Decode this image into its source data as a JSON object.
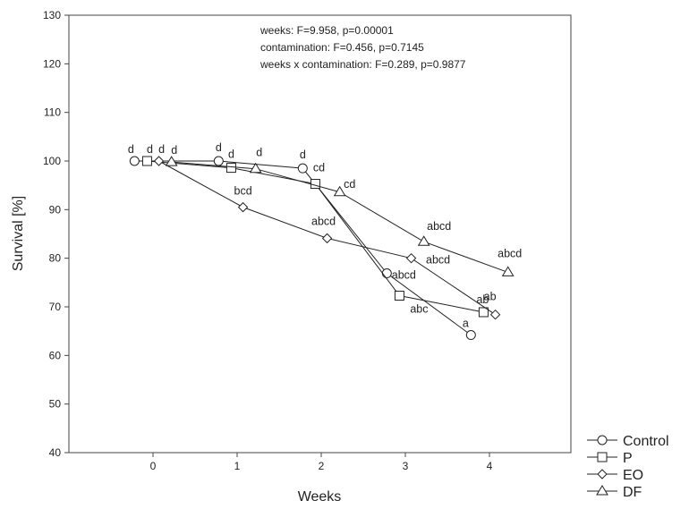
{
  "chart_data": {
    "type": "line",
    "xlabel": "Weeks",
    "ylabel": "Survival [%]",
    "xlim": [
      -1,
      5
    ],
    "ylim": [
      40,
      130
    ],
    "x_ticks": [
      0,
      1,
      2,
      3,
      4
    ],
    "y_ticks": [
      40,
      50,
      60,
      70,
      80,
      90,
      100,
      110,
      120,
      130
    ],
    "grid": false,
    "legend_position": "bottom-right, outside plot",
    "stats_text": [
      "weeks: F=9.958, p=0.00001",
      "contamination: F=0.456, p=0.7145",
      "weeks x contamination: F=0.289, p=0.9877"
    ],
    "series": [
      {
        "name": "Control",
        "marker": "circle",
        "points": [
          {
            "x": -0.22,
            "y": 100,
            "label": "d"
          },
          {
            "x": 0.78,
            "y": 100,
            "label": "d"
          },
          {
            "x": 1.78,
            "y": 98.5,
            "label": "d"
          },
          {
            "x": 2.78,
            "y": 76.9,
            "label": "abcd"
          },
          {
            "x": 3.78,
            "y": 64.2,
            "label": "a"
          }
        ]
      },
      {
        "name": "P",
        "marker": "square",
        "points": [
          {
            "x": -0.07,
            "y": 100,
            "label": "d"
          },
          {
            "x": 0.93,
            "y": 98.6,
            "label": "d"
          },
          {
            "x": 1.93,
            "y": 95.3,
            "label": "cd"
          },
          {
            "x": 2.93,
            "y": 72.3,
            "label": "abc"
          },
          {
            "x": 3.93,
            "y": 68.9,
            "label": "ab"
          }
        ]
      },
      {
        "name": "EO",
        "marker": "diamond",
        "points": [
          {
            "x": 0.07,
            "y": 100,
            "label": "d"
          },
          {
            "x": 1.07,
            "y": 90.5,
            "label": "bcd"
          },
          {
            "x": 2.07,
            "y": 84.1,
            "label": "abcd"
          },
          {
            "x": 3.07,
            "y": 80.0,
            "label": "abcd"
          },
          {
            "x": 4.07,
            "y": 68.4,
            "label": "ab"
          }
        ]
      },
      {
        "name": "DF",
        "marker": "triangle",
        "points": [
          {
            "x": 0.22,
            "y": 99.8,
            "label": "d"
          },
          {
            "x": 1.22,
            "y": 98.4,
            "label": "d"
          },
          {
            "x": 2.22,
            "y": 93.6,
            "label": "cd"
          },
          {
            "x": 3.22,
            "y": 83.4,
            "label": "abcd"
          },
          {
            "x": 4.22,
            "y": 77.1,
            "label": "abcd"
          }
        ]
      }
    ]
  }
}
